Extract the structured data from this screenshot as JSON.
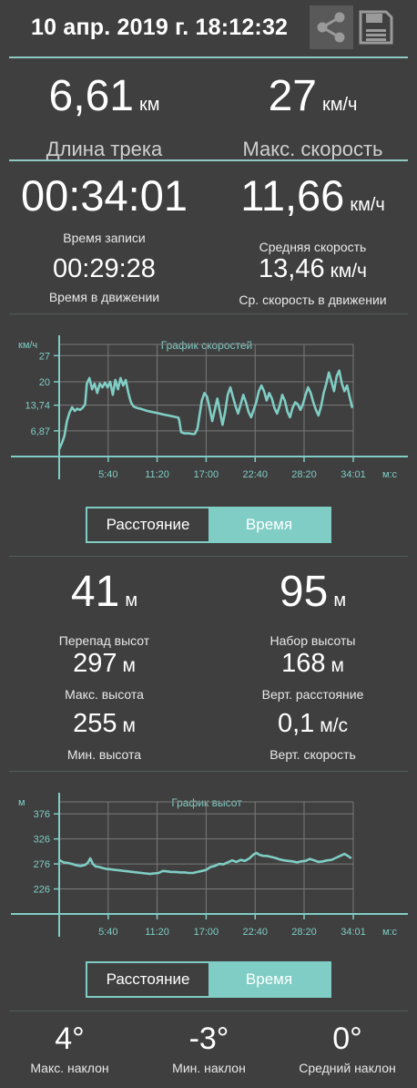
{
  "header": {
    "datetime": "10 апр. 2019 г. 18:12:32",
    "share_icon": "share-icon",
    "save_icon": "save-icon"
  },
  "summary": {
    "track_length": {
      "value": "6,61",
      "unit": "км",
      "label": "Длина трека"
    },
    "max_speed": {
      "value": "27",
      "unit": "км/ч",
      "label": "Макс. скорость"
    }
  },
  "time": {
    "record_time": {
      "value": "00:34:01",
      "label": "Время записи"
    },
    "avg_speed": {
      "value": "11,66",
      "unit": "км/ч",
      "label": "Средняя скорость"
    },
    "moving_time": {
      "value": "00:29:28",
      "label": "Время в движении"
    },
    "moving_avg_speed": {
      "value": "13,46",
      "unit": "км/ч",
      "label": "Ср. скорость в движении"
    }
  },
  "speed_chart": {
    "chart_data": {
      "type": "line",
      "title": "График скоростей",
      "ylabel": "км/ч",
      "xlabel": "м:с",
      "yticks": [
        "6,87",
        "13,74",
        "20",
        "27"
      ],
      "ytick_values": [
        6.87,
        13.74,
        20,
        27
      ],
      "xticks": [
        "5:40",
        "11:20",
        "17:00",
        "22:40",
        "28:20",
        "34:01"
      ],
      "xtick_values": [
        5.67,
        11.33,
        17.0,
        22.67,
        28.33,
        34.02
      ],
      "xlim": [
        0,
        34.02
      ],
      "ylim": [
        0,
        30
      ],
      "grid": true,
      "series": [
        {
          "values": [
            [
              0.0,
              2.0
            ],
            [
              0.3,
              3.5
            ],
            [
              0.6,
              5.5
            ],
            [
              0.9,
              9.5
            ],
            [
              1.2,
              11.8
            ],
            [
              1.5,
              13.2
            ],
            [
              1.8,
              12.2
            ],
            [
              2.1,
              12.8
            ],
            [
              2.4,
              12.5
            ],
            [
              2.7,
              13.0
            ],
            [
              3.0,
              14.0
            ],
            [
              3.2,
              19.5
            ],
            [
              3.5,
              21.0
            ],
            [
              3.8,
              18.0
            ],
            [
              4.1,
              19.5
            ],
            [
              4.4,
              17.0
            ],
            [
              4.7,
              19.5
            ],
            [
              5.0,
              18.5
            ],
            [
              5.3,
              19.8
            ],
            [
              5.6,
              18.5
            ],
            [
              5.9,
              20.0
            ],
            [
              6.2,
              16.5
            ],
            [
              6.5,
              20.5
            ],
            [
              6.8,
              18.0
            ],
            [
              7.1,
              21.0
            ],
            [
              7.4,
              19.0
            ],
            [
              7.7,
              20.5
            ],
            [
              8.0,
              17.0
            ],
            [
              8.3,
              14.5
            ],
            [
              8.6,
              13.4
            ],
            [
              9.0,
              13.0
            ],
            [
              9.4,
              12.8
            ],
            [
              9.8,
              12.5
            ],
            [
              10.2,
              12.2
            ],
            [
              10.6,
              12.0
            ],
            [
              11.0,
              11.8
            ],
            [
              11.4,
              11.6
            ],
            [
              11.8,
              11.4
            ],
            [
              12.2,
              11.2
            ],
            [
              12.6,
              11.0
            ],
            [
              13.0,
              10.8
            ],
            [
              13.4,
              10.6
            ],
            [
              13.8,
              10.4
            ],
            [
              13.9,
              9.5
            ],
            [
              14.1,
              6.5
            ],
            [
              14.5,
              6.2
            ],
            [
              15.0,
              6.2
            ],
            [
              15.5,
              6.0
            ],
            [
              15.7,
              6.1
            ],
            [
              16.0,
              7.5
            ],
            [
              16.2,
              10.5
            ],
            [
              16.5,
              15.0
            ],
            [
              16.8,
              17.0
            ],
            [
              17.1,
              16.0
            ],
            [
              17.4,
              13.0
            ],
            [
              17.7,
              9.5
            ],
            [
              18.0,
              12.5
            ],
            [
              18.3,
              15.5
            ],
            [
              18.6,
              12.0
            ],
            [
              18.9,
              8.5
            ],
            [
              19.2,
              12.0
            ],
            [
              19.5,
              16.5
            ],
            [
              19.8,
              18.5
            ],
            [
              20.1,
              16.0
            ],
            [
              20.4,
              13.5
            ],
            [
              20.7,
              11.5
            ],
            [
              21.0,
              14.0
            ],
            [
              21.3,
              16.5
            ],
            [
              21.6,
              14.5
            ],
            [
              21.9,
              12.0
            ],
            [
              22.2,
              10.5
            ],
            [
              22.5,
              12.5
            ],
            [
              22.8,
              14.5
            ],
            [
              23.1,
              17.5
            ],
            [
              23.4,
              19.0
            ],
            [
              23.7,
              17.5
            ],
            [
              24.0,
              15.0
            ],
            [
              24.3,
              17.0
            ],
            [
              24.6,
              15.5
            ],
            [
              24.9,
              13.0
            ],
            [
              25.2,
              11.5
            ],
            [
              25.5,
              13.5
            ],
            [
              25.8,
              16.5
            ],
            [
              26.1,
              15.0
            ],
            [
              26.4,
              12.0
            ],
            [
              26.7,
              10.5
            ],
            [
              27.0,
              13.0
            ],
            [
              27.3,
              14.5
            ],
            [
              27.6,
              14.0
            ],
            [
              27.9,
              12.5
            ],
            [
              28.2,
              14.0
            ],
            [
              28.5,
              16.5
            ],
            [
              28.8,
              18.5
            ],
            [
              29.1,
              17.0
            ],
            [
              29.4,
              14.5
            ],
            [
              29.7,
              12.5
            ],
            [
              30.0,
              11.0
            ],
            [
              30.3,
              13.5
            ],
            [
              30.6,
              17.0
            ],
            [
              30.9,
              19.5
            ],
            [
              31.2,
              22.5
            ],
            [
              31.5,
              20.0
            ],
            [
              31.8,
              17.5
            ],
            [
              32.1,
              21.5
            ],
            [
              32.4,
              23.0
            ],
            [
              32.7,
              19.5
            ],
            [
              33.0,
              17.5
            ],
            [
              33.3,
              19.0
            ],
            [
              33.6,
              16.0
            ],
            [
              33.9,
              13.0
            ]
          ]
        }
      ]
    }
  },
  "speed_toggle": {
    "distance": "Расстояние",
    "time": "Время"
  },
  "elevation": {
    "drop": {
      "value": "41",
      "unit": "м",
      "label": "Перепад высот"
    },
    "gain": {
      "value": "95",
      "unit": "м",
      "label": "Набор высоты"
    },
    "max_alt": {
      "value": "297",
      "unit": "м",
      "label": "Макс. высота"
    },
    "vert_dist": {
      "value": "168",
      "unit": "м",
      "label": "Верт. расстояние"
    },
    "min_alt": {
      "value": "255",
      "unit": "м",
      "label": "Мин. высота"
    },
    "vert_speed": {
      "value": "0,1",
      "unit": "м/с",
      "label": "Верт. скорость"
    }
  },
  "altitude_chart": {
    "chart_data": {
      "type": "line",
      "title": "График высот",
      "ylabel": "м",
      "xlabel": "м:с",
      "yticks": [
        "226",
        "276",
        "326",
        "376"
      ],
      "ytick_values": [
        226,
        276,
        326,
        376
      ],
      "xticks": [
        "5:40",
        "11:20",
        "17:00",
        "22:40",
        "28:20",
        "34:01"
      ],
      "xtick_values": [
        5.67,
        11.33,
        17.0,
        22.67,
        28.33,
        34.02
      ],
      "xlim": [
        0,
        34.02
      ],
      "ylim": [
        176,
        400
      ],
      "grid": true,
      "series": [
        {
          "values": [
            [
              0.0,
              284
            ],
            [
              0.5,
              279
            ],
            [
              1.0,
              278
            ],
            [
              1.5,
              276
            ],
            [
              2.0,
              273
            ],
            [
              2.5,
              272
            ],
            [
              3.0,
              274
            ],
            [
              3.3,
              278
            ],
            [
              3.6,
              287
            ],
            [
              3.9,
              276
            ],
            [
              4.2,
              271
            ],
            [
              4.6,
              270
            ],
            [
              5.0,
              268
            ],
            [
              5.5,
              266
            ],
            [
              6.0,
              265
            ],
            [
              6.5,
              264
            ],
            [
              7.0,
              263
            ],
            [
              7.5,
              262
            ],
            [
              8.0,
              261
            ],
            [
              8.5,
              260
            ],
            [
              9.0,
              259
            ],
            [
              9.5,
              258
            ],
            [
              10.0,
              257
            ],
            [
              10.5,
              256
            ],
            [
              11.0,
              257
            ],
            [
              11.5,
              258
            ],
            [
              12.0,
              262
            ],
            [
              12.5,
              261
            ],
            [
              13.0,
              260
            ],
            [
              13.5,
              260
            ],
            [
              14.0,
              259
            ],
            [
              14.5,
              259
            ],
            [
              15.0,
              258
            ],
            [
              15.5,
              258
            ],
            [
              16.0,
              260
            ],
            [
              16.5,
              262
            ],
            [
              17.0,
              264
            ],
            [
              17.5,
              270
            ],
            [
              18.0,
              272
            ],
            [
              18.5,
              276
            ],
            [
              19.0,
              275
            ],
            [
              19.5,
              279
            ],
            [
              20.0,
              283
            ],
            [
              20.5,
              280
            ],
            [
              21.0,
              284
            ],
            [
              21.5,
              282
            ],
            [
              22.0,
              287
            ],
            [
              22.5,
              295
            ],
            [
              22.8,
              298
            ],
            [
              23.2,
              294
            ],
            [
              23.6,
              292
            ],
            [
              24.0,
              292
            ],
            [
              24.5,
              290
            ],
            [
              25.0,
              288
            ],
            [
              25.5,
              285
            ],
            [
              26.0,
              283
            ],
            [
              26.5,
              282
            ],
            [
              27.0,
              281
            ],
            [
              27.5,
              279
            ],
            [
              28.0,
              281
            ],
            [
              28.5,
              282
            ],
            [
              29.0,
              286
            ],
            [
              29.5,
              283
            ],
            [
              30.0,
              280
            ],
            [
              30.5,
              281
            ],
            [
              31.0,
              283
            ],
            [
              31.5,
              284
            ],
            [
              32.0,
              288
            ],
            [
              32.5,
              292
            ],
            [
              33.0,
              296
            ],
            [
              33.4,
              292
            ],
            [
              33.8,
              287
            ]
          ]
        }
      ]
    }
  },
  "altitude_toggle": {
    "distance": "Расстояние",
    "time": "Время"
  },
  "slopes": {
    "max": {
      "value": "4°",
      "label": "Макс. наклон"
    },
    "min": {
      "value": "-3°",
      "label": "Мин. наклон"
    },
    "avg": {
      "value": "0°",
      "label": "Средний наклон"
    }
  },
  "colors": {
    "background": "#3f3f3f",
    "accent": "#7fcdc4",
    "grid": "#7a7a7a"
  }
}
